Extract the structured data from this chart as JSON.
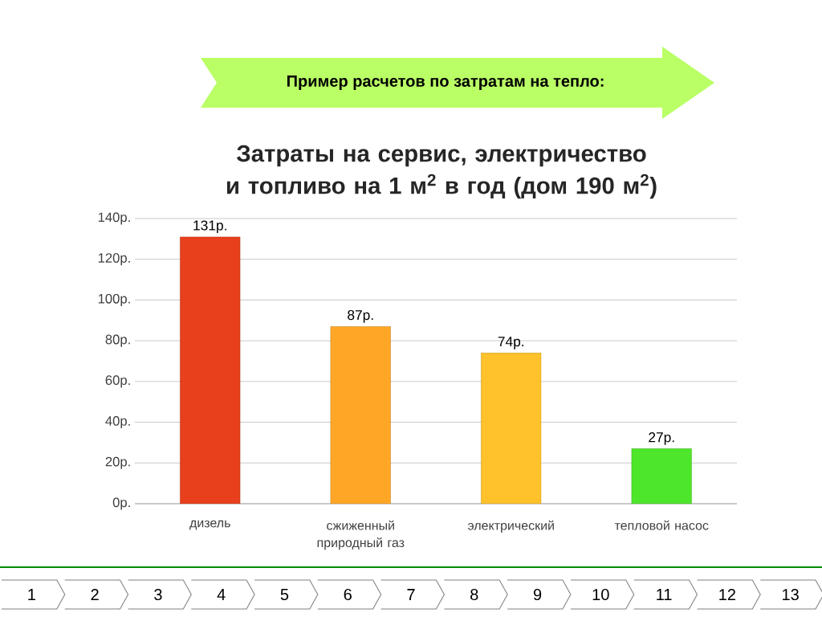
{
  "chart_data": {
    "type": "bar",
    "subtitle": "Пример расчетов по затратам на тепло:",
    "title": "Затраты на сервис, электричество и топливо на 1 м$^{2}$ в год (дом 190 м$^{2}$)",
    "categories": [
      "дизель",
      "сжиженный природный газ",
      "электрический",
      "тепловой насос"
    ],
    "values": [
      131,
      87,
      74,
      27
    ],
    "value_labels": [
      "131р.",
      "87р.",
      "74р.",
      "27р."
    ],
    "colors": [
      "#e8401c",
      "#ffa626",
      "#ffc22a",
      "#4ee62a"
    ],
    "ylim": [
      0,
      140
    ],
    "yticks": [
      {
        "value": 0,
        "label": "0р."
      },
      {
        "value": 20,
        "label": "20р."
      },
      {
        "value": 40,
        "label": "40р."
      },
      {
        "value": 60,
        "label": "60р."
      },
      {
        "value": 80,
        "label": "80р."
      },
      {
        "value": 100,
        "label": "100р."
      },
      {
        "value": 120,
        "label": "120р."
      },
      {
        "value": 140,
        "label": "140р."
      }
    ],
    "grid": "y",
    "annotations": [
      "1",
      "2",
      "3",
      "4",
      "5",
      "6",
      "7",
      "8",
      "9",
      "10",
      "11",
      "12",
      "13"
    ]
  }
}
